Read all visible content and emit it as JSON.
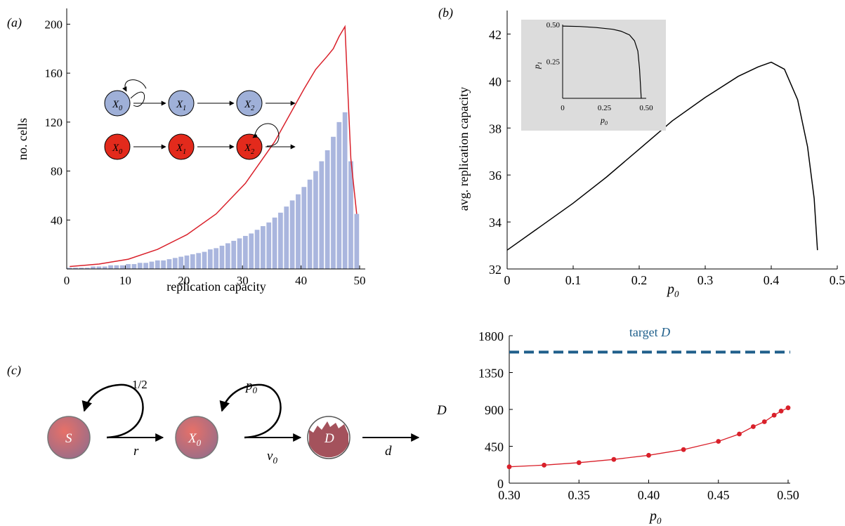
{
  "panels": {
    "a": "(a)",
    "b": "(b)",
    "c": "(c)"
  },
  "colors": {
    "bar": "#aab6de",
    "fit_line": "#d9202a",
    "red_node": "#e32a1c",
    "blue_node": "#9fb0d8",
    "inset_bg": "#dcdcdc",
    "target": "#1f5f8b",
    "node_gradient_top": "#e06a64",
    "node_gradient_bottom": "#9a6b86"
  },
  "chart_data": [
    {
      "id": "a",
      "type": "bar",
      "xlabel": "replication capacity",
      "ylabel": "no. cells",
      "xlim": [
        0,
        50
      ],
      "ylim": [
        0,
        210
      ],
      "xticks": [
        "0",
        "10",
        "20",
        "30",
        "40",
        "50"
      ],
      "yticks": [
        "40",
        "80",
        "120",
        "160",
        "200"
      ],
      "x": [
        0,
        1,
        2,
        3,
        4,
        5,
        6,
        7,
        8,
        9,
        10,
        11,
        12,
        13,
        14,
        15,
        16,
        17,
        18,
        19,
        20,
        21,
        22,
        23,
        24,
        25,
        26,
        27,
        28,
        29,
        30,
        31,
        32,
        33,
        34,
        35,
        36,
        37,
        38,
        39,
        40,
        41,
        42,
        43,
        44,
        45,
        46,
        47,
        48,
        49
      ],
      "values": [
        1,
        1,
        1,
        1,
        2,
        2,
        2,
        3,
        3,
        3,
        4,
        4,
        5,
        5,
        6,
        7,
        7,
        8,
        9,
        10,
        11,
        12,
        13,
        14,
        16,
        17,
        19,
        21,
        23,
        25,
        27,
        29,
        32,
        35,
        38,
        42,
        46,
        51,
        56,
        61,
        67,
        73,
        80,
        88,
        97,
        108,
        120,
        128,
        88,
        45
      ],
      "fit_curve": {
        "x": [
          0,
          5,
          10,
          15,
          20,
          25,
          30,
          35,
          40,
          42,
          44,
          45,
          46,
          47,
          48,
          49
        ],
        "y": [
          2,
          4,
          8,
          16,
          28,
          45,
          70,
          104,
          147,
          163,
          174,
          180,
          190,
          198,
          90,
          45
        ]
      },
      "diagram": {
        "blue_nodes": [
          "X",
          "X",
          "X"
        ],
        "blue_subs": [
          "0",
          "1",
          "2"
        ],
        "red_nodes": [
          "X",
          "X",
          "X"
        ],
        "red_subs": [
          "0",
          "1",
          "2"
        ]
      }
    },
    {
      "id": "b",
      "type": "line",
      "xlabel": "p",
      "xlabel_sub": "0",
      "ylabel": "avg. replication capacity",
      "xlim": [
        0,
        0.5
      ],
      "ylim": [
        32,
        43
      ],
      "xticks": [
        "0",
        "0.1",
        "0.2",
        "0.3",
        "0.4",
        "0.5"
      ],
      "yticks": [
        "32",
        "34",
        "36",
        "38",
        "40",
        "42"
      ],
      "x": [
        0,
        0.05,
        0.1,
        0.15,
        0.2,
        0.25,
        0.3,
        0.35,
        0.38,
        0.4,
        0.42,
        0.44,
        0.455,
        0.465,
        0.47
      ],
      "values": [
        32.8,
        33.8,
        34.8,
        35.9,
        37.1,
        38.3,
        39.3,
        40.2,
        40.6,
        40.8,
        40.5,
        39.2,
        37.2,
        35.0,
        32.8
      ],
      "inset": {
        "xlabel": "p",
        "xlabel_sub": "0",
        "ylabel": "p",
        "ylabel_sub": "1",
        "xticks": [
          "0",
          "0.25",
          "0.50"
        ],
        "yticks": [
          "0.25",
          "0.50"
        ],
        "xlim": [
          0,
          0.5
        ],
        "ylim": [
          0,
          0.5
        ],
        "x": [
          0,
          0.1,
          0.2,
          0.3,
          0.35,
          0.4,
          0.43,
          0.45,
          0.46,
          0.47
        ],
        "values": [
          0.49,
          0.487,
          0.48,
          0.468,
          0.455,
          0.43,
          0.39,
          0.32,
          0.2,
          0.0
        ]
      }
    },
    {
      "id": "c",
      "type": "scatter",
      "xlabel": "p",
      "xlabel_sub": "0",
      "ylabel": "D",
      "xlim": [
        0.3,
        0.5
      ],
      "ylim": [
        0,
        1800
      ],
      "xticks": [
        "0.30",
        "0.35",
        "0.40",
        "0.45",
        "0.50"
      ],
      "yticks": [
        "0",
        "450",
        "900",
        "1350",
        "1800"
      ],
      "x": [
        0.3,
        0.325,
        0.35,
        0.375,
        0.4,
        0.425,
        0.45,
        0.465,
        0.475,
        0.483,
        0.49,
        0.495,
        0.5
      ],
      "values": [
        200,
        220,
        250,
        290,
        340,
        410,
        510,
        600,
        690,
        750,
        830,
        880,
        920
      ],
      "target": {
        "label": "target",
        "label_var": "D",
        "value": 1600
      },
      "diagram": {
        "nodes": [
          "S",
          "X",
          "D"
        ],
        "x_sub": "0",
        "loop1_label": "1/2",
        "loop2_label": "p",
        "loop2_sub": "0",
        "arrow1_label": "r",
        "arrow2_label": "v",
        "arrow2_sub": "0",
        "arrow3_label": "d"
      }
    }
  ]
}
